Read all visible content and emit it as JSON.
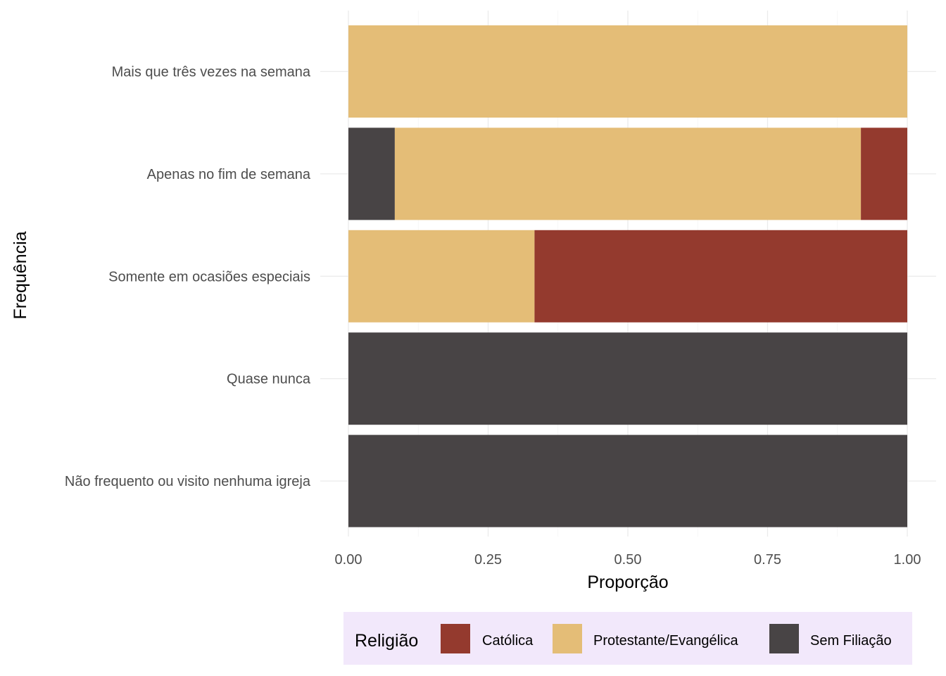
{
  "chart_data": {
    "type": "bar",
    "orientation": "horizontal",
    "stacked": true,
    "xlabel": "Proporção",
    "ylabel": "Frequência",
    "xlim": [
      0,
      1
    ],
    "x_ticks": [
      "0.00",
      "0.25",
      "0.50",
      "0.75",
      "1.00"
    ],
    "grid": true,
    "legend_position": "bottom",
    "categories": [
      "Mais que três vezes na semana",
      "Apenas no fim de semana",
      "Somente em ocasiões especiais",
      "Quase nunca",
      "Não frequento ou visito nenhuma igreja"
    ],
    "stack_order": [
      "Sem Filiação",
      "Protestante/Evangélica",
      "Católica"
    ],
    "series": [
      {
        "name": "Católica",
        "color": "#943A2E",
        "values": [
          0,
          0.083,
          0.667,
          0,
          0
        ]
      },
      {
        "name": "Protestante/Evangélica",
        "color": "#E4BD77",
        "values": [
          1,
          0.834,
          0.333,
          0,
          0
        ]
      },
      {
        "name": "Sem Filiação",
        "color": "#484445",
        "values": [
          0,
          0.083,
          0,
          1,
          1
        ]
      }
    ],
    "legend": {
      "title": "Religião",
      "background": "#F2E8FB",
      "items": [
        "Católica",
        "Protestante/Evangélica",
        "Sem Filiação"
      ]
    }
  }
}
